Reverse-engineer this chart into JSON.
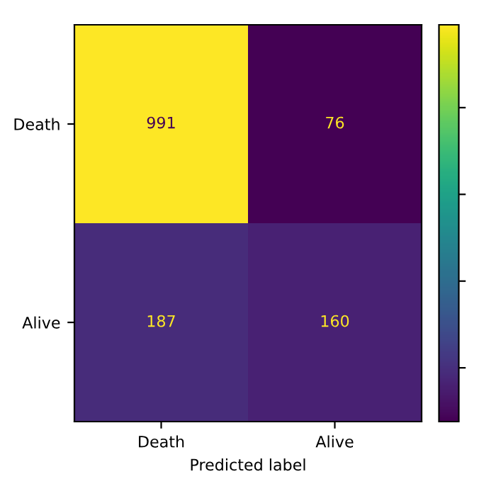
{
  "chart_data": {
    "type": "heatmap",
    "xlabel": "Predicted label",
    "categories": [
      "Death",
      "Alive"
    ],
    "y_categories": [
      "Death",
      "Alive"
    ],
    "cells": [
      [
        991,
        76
      ],
      [
        187,
        160
      ]
    ],
    "data_labels": true,
    "grid": false
  }
}
